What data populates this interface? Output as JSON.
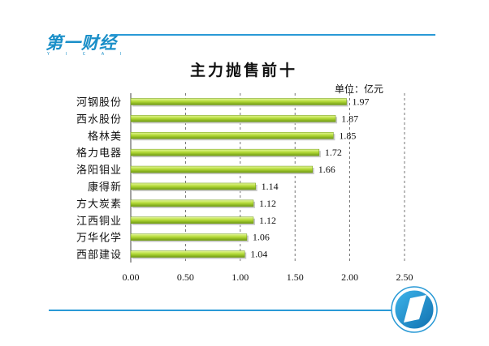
{
  "brand": {
    "logo_text": "第一财经",
    "logo_sub": "Y  I  C  A  I",
    "accent_color": "#2a9ad6"
  },
  "chart_data": {
    "type": "bar",
    "orientation": "horizontal",
    "title": "主力抛售前十",
    "unit_label": "单位：亿元",
    "categories": [
      "河钢股份",
      "西水股份",
      "格林美",
      "格力电器",
      "洛阳钼业",
      "康得新",
      "方大炭素",
      "江西铜业",
      "万华化学",
      "西部建设"
    ],
    "values": [
      1.97,
      1.87,
      1.85,
      1.72,
      1.66,
      1.14,
      1.12,
      1.12,
      1.06,
      1.04
    ],
    "value_labels": [
      "1.97",
      "1.87",
      "1.85",
      "1.72",
      "1.66",
      "1.14",
      "1.12",
      "1.12",
      "1.06",
      "1.04"
    ],
    "xlim": [
      0,
      2.5
    ],
    "x_ticks": [
      "0.00",
      "0.50",
      "1.00",
      "1.50",
      "2.00",
      "2.50"
    ],
    "grid": "vertical-dashed",
    "bar_color": "#a9cf2e",
    "legend": "none"
  }
}
